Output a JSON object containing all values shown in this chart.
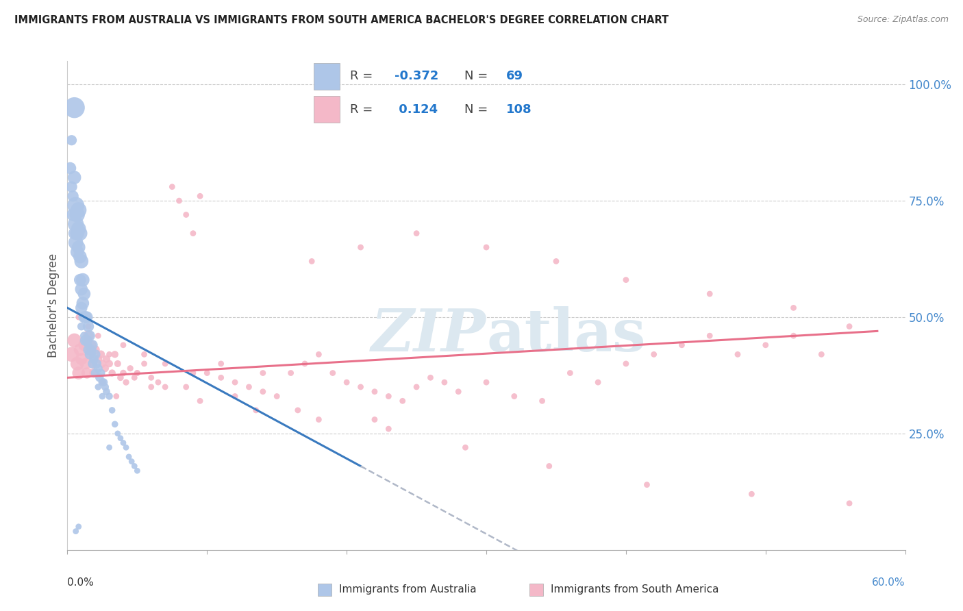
{
  "title": "IMMIGRANTS FROM AUSTRALIA VS IMMIGRANTS FROM SOUTH AMERICA BACHELOR'S DEGREE CORRELATION CHART",
  "source": "Source: ZipAtlas.com",
  "ylabel": "Bachelor's Degree",
  "color_australia": "#aec6e8",
  "color_south_america": "#f4b8c8",
  "trendline_australia_color": "#3a7abf",
  "trendline_south_america_color": "#e8708a",
  "trendline_dashed_color": "#b0b8c8",
  "watermark_color": "#dce8f0",
  "ytick_labels": [
    "100.0%",
    "75.0%",
    "50.0%",
    "25.0%"
  ],
  "ytick_positions": [
    1.0,
    0.75,
    0.5,
    0.25
  ],
  "xmin": 0.0,
  "xmax": 0.6,
  "ymin": 0.0,
  "ymax": 1.05,
  "australia_x": [
    0.002,
    0.003,
    0.003,
    0.004,
    0.004,
    0.005,
    0.005,
    0.005,
    0.006,
    0.006,
    0.006,
    0.007,
    0.007,
    0.007,
    0.008,
    0.008,
    0.008,
    0.009,
    0.009,
    0.009,
    0.01,
    0.01,
    0.01,
    0.011,
    0.011,
    0.012,
    0.012,
    0.013,
    0.013,
    0.014,
    0.014,
    0.015,
    0.015,
    0.016,
    0.016,
    0.017,
    0.018,
    0.018,
    0.019,
    0.02,
    0.02,
    0.021,
    0.022,
    0.023,
    0.024,
    0.025,
    0.026,
    0.027,
    0.028,
    0.03,
    0.032,
    0.034,
    0.036,
    0.038,
    0.04,
    0.042,
    0.044,
    0.046,
    0.048,
    0.05,
    0.01,
    0.012,
    0.015,
    0.018,
    0.022,
    0.025,
    0.03,
    0.008,
    0.006
  ],
  "australia_y": [
    0.82,
    0.78,
    0.88,
    0.72,
    0.76,
    0.8,
    0.68,
    0.95,
    0.74,
    0.7,
    0.66,
    0.72,
    0.68,
    0.64,
    0.73,
    0.69,
    0.65,
    0.68,
    0.63,
    0.58,
    0.62,
    0.56,
    0.52,
    0.58,
    0.53,
    0.55,
    0.5,
    0.5,
    0.45,
    0.5,
    0.45,
    0.48,
    0.43,
    0.46,
    0.42,
    0.43,
    0.44,
    0.4,
    0.41,
    0.42,
    0.38,
    0.4,
    0.39,
    0.37,
    0.38,
    0.36,
    0.36,
    0.35,
    0.34,
    0.33,
    0.3,
    0.27,
    0.25,
    0.24,
    0.23,
    0.22,
    0.2,
    0.19,
    0.18,
    0.17,
    0.48,
    0.46,
    0.44,
    0.42,
    0.35,
    0.33,
    0.22,
    0.05,
    0.04
  ],
  "australia_size": [
    40,
    35,
    30,
    45,
    35,
    50,
    40,
    120,
    80,
    70,
    60,
    65,
    55,
    50,
    70,
    60,
    50,
    60,
    50,
    40,
    55,
    45,
    40,
    50,
    45,
    45,
    38,
    40,
    35,
    38,
    32,
    35,
    30,
    32,
    28,
    28,
    30,
    25,
    25,
    28,
    22,
    24,
    22,
    20,
    20,
    18,
    18,
    16,
    15,
    14,
    12,
    12,
    10,
    10,
    10,
    10,
    10,
    10,
    10,
    10,
    18,
    18,
    15,
    15,
    12,
    12,
    10,
    10,
    10
  ],
  "south_america_x": [
    0.003,
    0.005,
    0.007,
    0.008,
    0.009,
    0.01,
    0.012,
    0.013,
    0.014,
    0.015,
    0.016,
    0.017,
    0.018,
    0.019,
    0.02,
    0.022,
    0.024,
    0.025,
    0.027,
    0.028,
    0.03,
    0.032,
    0.034,
    0.036,
    0.038,
    0.04,
    0.042,
    0.045,
    0.048,
    0.05,
    0.055,
    0.06,
    0.065,
    0.07,
    0.075,
    0.08,
    0.085,
    0.09,
    0.095,
    0.1,
    0.11,
    0.12,
    0.13,
    0.14,
    0.15,
    0.16,
    0.17,
    0.18,
    0.19,
    0.2,
    0.21,
    0.22,
    0.23,
    0.24,
    0.25,
    0.26,
    0.27,
    0.28,
    0.3,
    0.32,
    0.34,
    0.36,
    0.38,
    0.4,
    0.42,
    0.44,
    0.46,
    0.48,
    0.5,
    0.52,
    0.54,
    0.56,
    0.008,
    0.015,
    0.022,
    0.03,
    0.04,
    0.055,
    0.07,
    0.09,
    0.11,
    0.14,
    0.175,
    0.21,
    0.25,
    0.3,
    0.35,
    0.4,
    0.46,
    0.52,
    0.035,
    0.06,
    0.095,
    0.135,
    0.18,
    0.23,
    0.285,
    0.345,
    0.415,
    0.49,
    0.56,
    0.025,
    0.05,
    0.085,
    0.12,
    0.165,
    0.22
  ],
  "south_america_y": [
    0.42,
    0.45,
    0.4,
    0.38,
    0.43,
    0.41,
    0.44,
    0.4,
    0.38,
    0.46,
    0.42,
    0.44,
    0.4,
    0.38,
    0.43,
    0.41,
    0.42,
    0.4,
    0.39,
    0.41,
    0.4,
    0.38,
    0.42,
    0.4,
    0.37,
    0.38,
    0.36,
    0.39,
    0.37,
    0.38,
    0.4,
    0.37,
    0.36,
    0.35,
    0.78,
    0.75,
    0.72,
    0.68,
    0.76,
    0.38,
    0.37,
    0.36,
    0.35,
    0.34,
    0.33,
    0.38,
    0.4,
    0.42,
    0.38,
    0.36,
    0.35,
    0.34,
    0.33,
    0.32,
    0.35,
    0.37,
    0.36,
    0.34,
    0.36,
    0.33,
    0.32,
    0.38,
    0.36,
    0.4,
    0.42,
    0.44,
    0.46,
    0.42,
    0.44,
    0.46,
    0.42,
    0.48,
    0.5,
    0.48,
    0.46,
    0.42,
    0.44,
    0.42,
    0.4,
    0.38,
    0.4,
    0.38,
    0.62,
    0.65,
    0.68,
    0.65,
    0.62,
    0.58,
    0.55,
    0.52,
    0.33,
    0.35,
    0.32,
    0.3,
    0.28,
    0.26,
    0.22,
    0.18,
    0.14,
    0.12,
    0.1,
    0.36,
    0.38,
    0.35,
    0.33,
    0.3,
    0.28
  ],
  "south_america_size": [
    60,
    55,
    50,
    45,
    42,
    40,
    38,
    36,
    34,
    32,
    30,
    28,
    26,
    24,
    22,
    20,
    18,
    18,
    16,
    16,
    15,
    14,
    14,
    13,
    12,
    12,
    11,
    11,
    10,
    10,
    10,
    10,
    10,
    10,
    10,
    10,
    10,
    10,
    10,
    10,
    10,
    10,
    10,
    10,
    10,
    10,
    10,
    10,
    10,
    10,
    10,
    10,
    10,
    10,
    10,
    10,
    10,
    10,
    10,
    10,
    10,
    10,
    10,
    10,
    10,
    10,
    10,
    10,
    10,
    10,
    10,
    10,
    10,
    10,
    10,
    10,
    10,
    10,
    10,
    10,
    10,
    10,
    10,
    10,
    10,
    10,
    10,
    10,
    10,
    10,
    10,
    10,
    10,
    10,
    10,
    10,
    10,
    10,
    10,
    10,
    10,
    10,
    10,
    10,
    10,
    10,
    10
  ],
  "aus_trend_x0": 0.0,
  "aus_trend_y0": 0.52,
  "aus_trend_x1": 0.21,
  "aus_trend_y1": 0.18,
  "aus_trend_solid_end": 0.21,
  "aus_trend_dash_end": 0.55,
  "sa_trend_x0": 0.0,
  "sa_trend_y0": 0.37,
  "sa_trend_x1": 0.58,
  "sa_trend_y1": 0.47
}
